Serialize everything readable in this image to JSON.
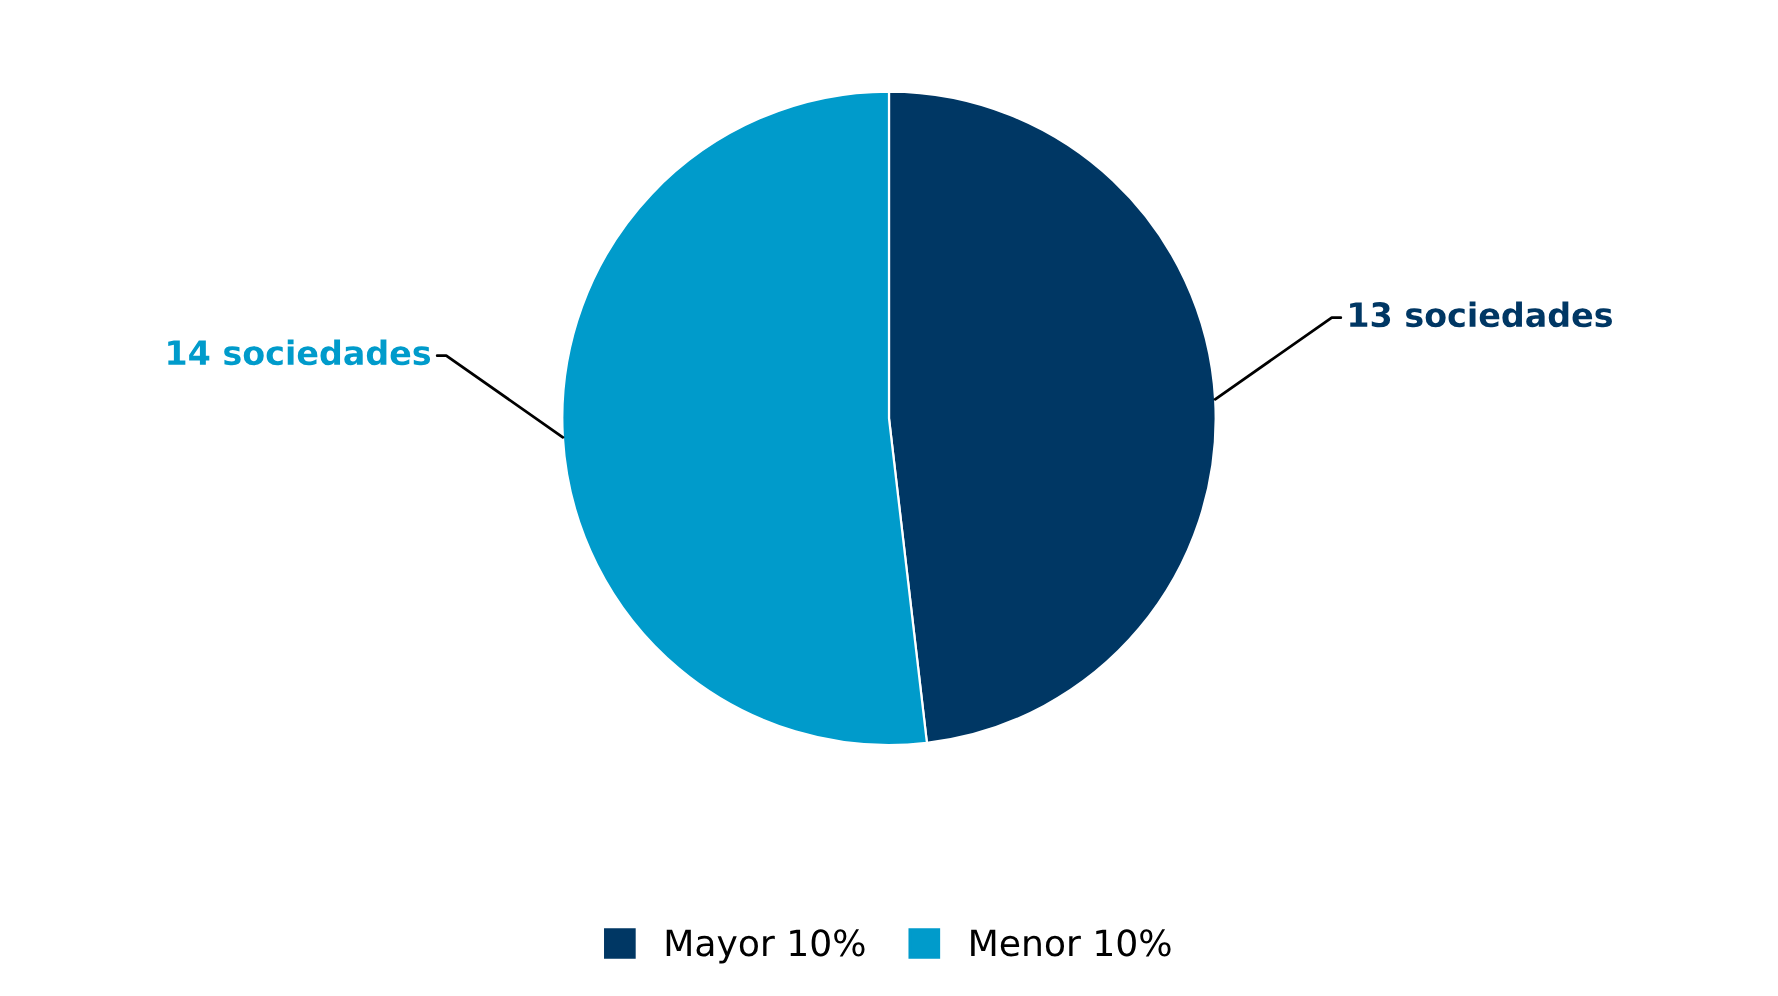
{
  "chart_data": {
    "type": "pie",
    "categories": [
      "Mayor 10%",
      "Menor 10%"
    ],
    "values": [
      13,
      14
    ],
    "colors": [
      "#003764",
      "#009bcb"
    ],
    "value_labels": [
      "13 sociedades",
      "14 sociedades"
    ],
    "legend": "bottom"
  }
}
